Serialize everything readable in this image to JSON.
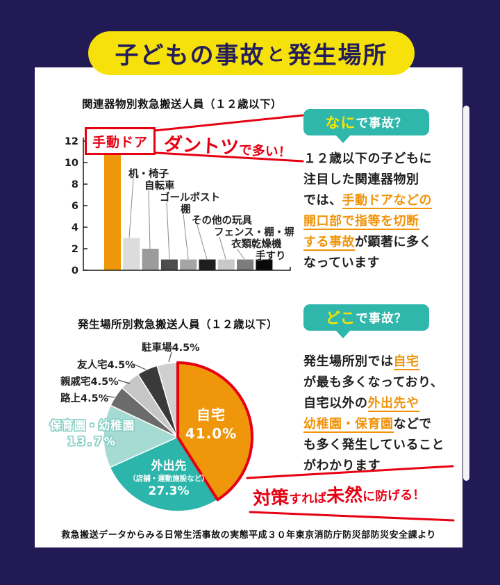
{
  "page": {
    "title": {
      "part1": "子どもの事故",
      "connector": "と",
      "part2": "発生場所"
    },
    "source": "救急搬送データからみる日常生活事故の実態平成３０年東京消防庁防災部防災安全課より",
    "colors": {
      "background": "#211A55",
      "card": "#FFFFFF",
      "banner_yellow": "#F6E10B",
      "banner_text": "#241D5C",
      "accent_red": "#E60012",
      "accent_orange": "#F0940A",
      "badge_teal": "#2FB7AC",
      "badge_yellow": "#F7E400",
      "text_dark": "#1F1F1F"
    }
  },
  "chart_data": [
    {
      "type": "bar",
      "title": "関連器物別救急搬送人員（１２歳以下）",
      "categories": [
        "手動ドア",
        "机・椅子",
        "自転車",
        "ゴールポスト",
        "棚",
        "その他の玩具",
        "フェンス・棚・塀",
        "衣類乾燥機",
        "手すり"
      ],
      "values": [
        12,
        3,
        2,
        1,
        1,
        1,
        1,
        1,
        1
      ],
      "colors": [
        "#F0960B",
        "#DCDCDC",
        "#9B9B9B",
        "#4D4D4D",
        "#A5A5A5",
        "#1E1E1E",
        "#C9C9C9",
        "#7C7C7C",
        "#0A0A0A"
      ],
      "xlabel": "",
      "ylabel": "",
      "ylim": [
        0,
        12
      ],
      "yticks": [
        0,
        2,
        4,
        6,
        8,
        10,
        12
      ],
      "grid": false,
      "highlighted_category": "手動ドア"
    },
    {
      "type": "pie",
      "title": "発生場所別救急搬送人員（１２歳以下）",
      "start_angle_deg": 0,
      "direction": "clockwise",
      "slices": [
        {
          "label": "自宅",
          "value": 41.0,
          "color": "#F0960B",
          "outline": "#E60012"
        },
        {
          "label": "外出先（店舗・運動施設など）",
          "value": 27.3,
          "color": "#2BB5AB"
        },
        {
          "label": "保育園・幼稚園",
          "value": 13.7,
          "color": "#A6DBD3"
        },
        {
          "label": "路上",
          "value": 4.5,
          "color": "#6B6B6B"
        },
        {
          "label": "親戚宅",
          "value": 4.5,
          "color": "#C6C6C6"
        },
        {
          "label": "友人宅",
          "value": 4.5,
          "color": "#3A3A3A"
        },
        {
          "label": "駐車場",
          "value": 4.5,
          "color": "#CFCFCF"
        }
      ],
      "labels": {
        "home": {
          "line1": "自宅",
          "line2": "41.0%"
        },
        "out": {
          "line1": "外出先",
          "line2": "（店舗・運動施設など）",
          "line3": "27.3%"
        },
        "nursery": {
          "line1": "保育園・幼稚園",
          "line2": "13.7%"
        },
        "road": "路上4.5%",
        "relative": "親戚宅4.5%",
        "friend": "友人宅4.5%",
        "parking": "駐車場4.5%"
      }
    }
  ],
  "sections": {
    "what": {
      "badge": {
        "highlight": "なに",
        "rest": "で事故？"
      },
      "lines": [
        [
          {
            "t": "１２歳以下の子どもに"
          }
        ],
        [
          {
            "t": "注目した関連器物別"
          }
        ],
        [
          {
            "t": "では、"
          },
          {
            "t": "手動ドアなどの",
            "hl": true
          }
        ],
        [
          {
            "t": "開口部で指等を切断",
            "hl": true
          }
        ],
        [
          {
            "t": "する事故",
            "hl": true
          },
          {
            "t": "が顕著に多く"
          }
        ],
        [
          {
            "t": "なっています"
          }
        ]
      ]
    },
    "where": {
      "badge": {
        "highlight": "どこ",
        "rest": "で事故？"
      },
      "lines": [
        [
          {
            "t": "発生場所別では"
          },
          {
            "t": "自宅",
            "hl": true
          }
        ],
        [
          {
            "t": "が最も多くなっており、"
          }
        ],
        [
          {
            "t": "自宅以外の"
          },
          {
            "t": "外出先や",
            "hl": true
          }
        ],
        [
          {
            "t": "幼稚園・保育園",
            "hl": true
          },
          {
            "t": "などで"
          }
        ],
        [
          {
            "t": "も多く発生していること"
          }
        ],
        [
          {
            "t": "がわかります"
          }
        ]
      ]
    }
  },
  "annotations": {
    "bar": {
      "big": "ダントツ",
      "small": "で多い！"
    },
    "pie": {
      "big1": "対策",
      "small1": "すれば",
      "big2": "未然",
      "small2": "に防げる！"
    }
  }
}
